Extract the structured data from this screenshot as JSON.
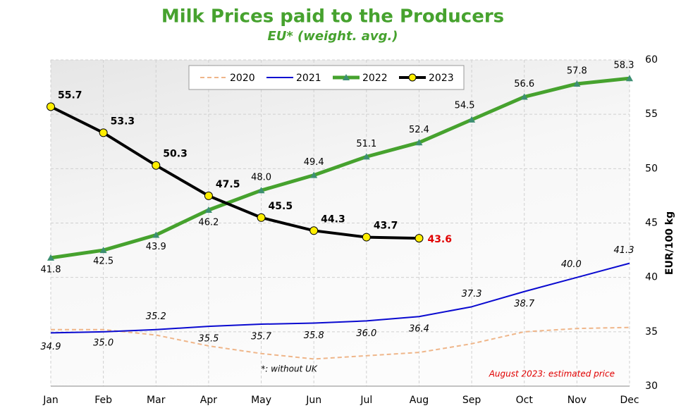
{
  "chart_data": {
    "type": "line",
    "title": "Milk Prices paid to the Producers",
    "subtitle": "EU* (weight. avg.)",
    "y_label": "EUR/100 kg",
    "categories": [
      "Jan",
      "Feb",
      "Mar",
      "Apr",
      "May",
      "Jun",
      "Jul",
      "Aug",
      "Sep",
      "Oct",
      "Nov",
      "Dec"
    ],
    "series": [
      {
        "name": "2020",
        "color": "#efb68a",
        "dashed": true,
        "values": [
          35.2,
          35.2,
          34.7,
          33.7,
          33.0,
          32.5,
          32.8,
          33.1,
          33.9,
          35.0,
          35.3,
          35.4
        ]
      },
      {
        "name": "2021",
        "color": "#0a0ad0",
        "values": [
          34.9,
          35.0,
          35.2,
          35.5,
          35.7,
          35.8,
          36.0,
          36.4,
          37.3,
          38.7,
          40.0,
          41.3
        ],
        "value_labels": [
          "34.9",
          "35.0",
          "35.2",
          "35.5",
          "35.7",
          "35.8",
          "36.0",
          "36.4",
          "37.3",
          "38.7",
          "40.0",
          "41.3"
        ]
      },
      {
        "name": "2022",
        "color": "#46a22e",
        "marker": "triangle",
        "marker_color": "#3d8f72",
        "values": [
          41.8,
          42.5,
          43.9,
          46.2,
          48.0,
          49.4,
          51.1,
          52.4,
          54.5,
          56.6,
          57.8,
          58.3
        ],
        "value_labels": [
          "41.8",
          "42.5",
          "43.9",
          "46.2",
          "48.0",
          "49.4",
          "51.1",
          "52.4",
          "54.5",
          "56.6",
          "57.8",
          "58.3"
        ]
      },
      {
        "name": "2023",
        "color": "#000000",
        "marker": "circle",
        "marker_color": "#ffee00",
        "values": [
          55.7,
          53.3,
          50.3,
          47.5,
          45.5,
          44.3,
          43.7,
          43.6,
          null,
          null,
          null,
          null
        ],
        "estimate_color": "#e00000"
      }
    ],
    "ylim": [
      30,
      60
    ],
    "yticks": [
      30,
      35,
      40,
      45,
      50,
      55,
      60
    ],
    "grid": true,
    "legend": "top",
    "annotations": [
      "*: without UK",
      "August 2023: estimated price"
    ]
  }
}
